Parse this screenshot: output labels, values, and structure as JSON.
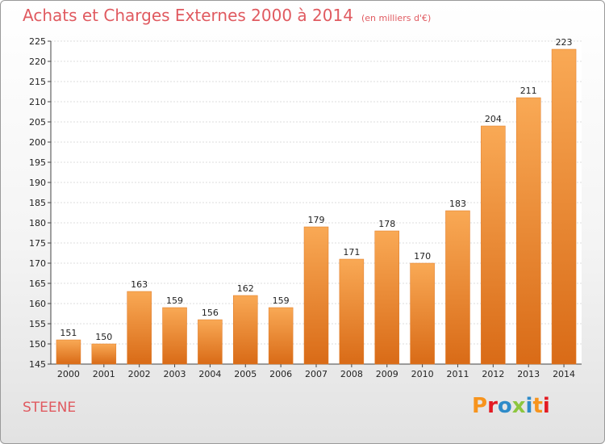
{
  "header": {
    "title": "Achats et Charges Externes 2000 à 2014",
    "unit": "(en milliers d'€)"
  },
  "footer": {
    "city": "STEENE"
  },
  "logo": {
    "text": "Proxiti",
    "colors": [
      "#f7941d",
      "#e31b23",
      "#2e8bc9",
      "#8dc63f",
      "#2e8bc9",
      "#f7941d",
      "#e31b23"
    ]
  },
  "chart_data": {
    "type": "bar",
    "title": "Achats et Charges Externes 2000 à 2014",
    "subtitle": "(en milliers d'€)",
    "categories": [
      "2000",
      "2001",
      "2002",
      "2003",
      "2004",
      "2005",
      "2006",
      "2007",
      "2008",
      "2009",
      "2010",
      "2011",
      "2012",
      "2013",
      "2014"
    ],
    "values": [
      151,
      150,
      163,
      159,
      156,
      162,
      159,
      179,
      171,
      178,
      170,
      183,
      204,
      211,
      223
    ],
    "ylim": [
      145,
      225
    ],
    "yticks": [
      145,
      150,
      155,
      160,
      165,
      170,
      175,
      180,
      185,
      190,
      195,
      200,
      205,
      210,
      215,
      220,
      225
    ],
    "grid": true,
    "bar_color": "#f0862e"
  }
}
